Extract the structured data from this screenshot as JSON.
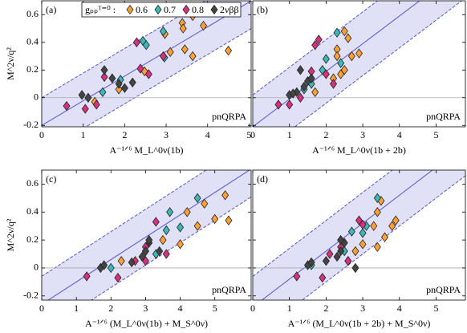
{
  "chart_data": [
    {
      "type": "scatter",
      "title": "(a)",
      "annotation": "pnQRPA",
      "xlabel": "A⁻¹ᐟ⁶ M_L^0ν(1b)",
      "ylabel": "M^2ν/q²",
      "xlim": [
        0,
        5.05
      ],
      "ylim": [
        -0.21,
        0.7
      ],
      "xticks": [
        0,
        1,
        2,
        3,
        4,
        5
      ],
      "yticks": [
        -0.2,
        0,
        0.2,
        0.4,
        0.6
      ],
      "ytick_labels": true,
      "zero_line": true,
      "fit": {
        "intercept": -0.2,
        "slope": 0.178,
        "band": 0.2,
        "color": "#5555d5"
      },
      "legend": "upper left",
      "legend_title": "gₚₚᵀ⁼⁰ :",
      "series": [
        {
          "name": "0.6",
          "color": "#ffa033",
          "x": [
            1.28,
            1.86,
            2.48,
            3.45,
            3.64,
            2.97,
            3.39,
            3.64,
            3.41,
            3.1,
            4.5,
            3.9
          ],
          "values": [
            -0.03,
            0.06,
            0.19,
            0.35,
            0.3,
            0.46,
            0.54,
            0.59,
            0.5,
            0.33,
            0.34,
            0.52
          ]
        },
        {
          "name": "0.7",
          "color": "#3cb8b8",
          "x": [
            1.47,
            1.9,
            2.44,
            2.93,
            2.96,
            2.52
          ],
          "values": [
            0.04,
            0.13,
            0.41,
            0.48,
            0.29,
            0.38
          ]
        },
        {
          "name": "0.8",
          "color": "#d8307c",
          "x": [
            0.6,
            1.05,
            1.32,
            1.51,
            2.29,
            2.38,
            2.58,
            2.93
          ],
          "values": [
            -0.06,
            -0.08,
            -0.05,
            0.15,
            0.4,
            0.21,
            0.17,
            0.3
          ]
        },
        {
          "name": "2νββ",
          "color": "#444444",
          "x": [
            0.97,
            1.12,
            1.7,
            1.86,
            2.0,
            2.19,
            1.51
          ],
          "values": [
            0.02,
            0.0,
            0.14,
            0.1,
            0.07,
            0.11,
            0.2
          ]
        }
      ]
    },
    {
      "type": "scatter",
      "title": "(b)",
      "annotation": "pnQRPA",
      "xlabel": "A⁻¹ᐟ⁶ M_L^0ν(1b + 2b)",
      "xlim": [
        0,
        5.8
      ],
      "ylim": [
        -0.21,
        0.7
      ],
      "xticks": [
        0,
        1,
        2,
        3,
        4,
        5
      ],
      "yticks": [
        -0.2,
        0,
        0.2,
        0.4,
        0.6
      ],
      "ytick_labels": false,
      "zero_line": true,
      "fit": {
        "intercept": -0.21,
        "slope": 0.2,
        "band": 0.23,
        "color": "#5555d5"
      },
      "series": [
        {
          "color": "#ffa033",
          "x": [
            1.7,
            2.2,
            2.4,
            2.5,
            2.7,
            2.6,
            2.5,
            2.3,
            2.9,
            2.3
          ],
          "values": [
            0.04,
            0.14,
            0.17,
            0.2,
            0.3,
            0.43,
            0.48,
            0.35,
            0.32,
            0.3
          ]
        },
        {
          "color": "#3cb8b8",
          "x": [
            1.6,
            1.9,
            2.0,
            2.4,
            2.3,
            1.4
          ],
          "values": [
            0.1,
            0.2,
            0.28,
            0.25,
            0.47,
            0.06
          ]
        },
        {
          "color": "#d8307c",
          "x": [
            0.7,
            1.0,
            1.3,
            1.6,
            1.8,
            1.7,
            2.0,
            2.2
          ],
          "values": [
            -0.05,
            -0.05,
            0.0,
            0.19,
            0.42,
            0.38,
            0.17,
            0.1
          ]
        },
        {
          "color": "#444444",
          "x": [
            1.0,
            1.2,
            1.4,
            1.5,
            1.6,
            1.3,
            1.1
          ],
          "values": [
            0.02,
            0.04,
            0.08,
            0.12,
            0.14,
            0.2,
            0.03
          ]
        }
      ]
    },
    {
      "type": "scatter",
      "title": "(c)",
      "annotation": "pnQRPA",
      "xlabel": "A⁻¹ᐟ⁶ (M_L^0ν(1b) + M_S^0ν)",
      "ylabel": "M^2ν/q²",
      "xlim": [
        0,
        6.05
      ],
      "ylim": [
        -0.23,
        0.7
      ],
      "xticks": [
        0,
        1,
        2,
        3,
        4,
        5
      ],
      "yticks": [
        -0.2,
        0,
        0.2,
        0.4,
        0.6
      ],
      "ytick_labels": true,
      "zero_line": true,
      "fit": {
        "intercept": -0.26,
        "slope": 0.16,
        "band": 0.2,
        "color": "#5555d5"
      },
      "series": [
        {
          "color": "#ffa033",
          "x": [
            2.3,
            3.0,
            3.5,
            4.0,
            4.5,
            5.0,
            5.4,
            4.7,
            5.3,
            4.2
          ],
          "values": [
            0.05,
            0.12,
            0.2,
            0.17,
            0.3,
            0.35,
            0.34,
            0.46,
            0.52,
            0.4
          ]
        },
        {
          "color": "#3cb8b8",
          "x": [
            2.0,
            3.3,
            3.6,
            4.0,
            4.5,
            3.7
          ],
          "values": [
            0.0,
            0.1,
            0.27,
            0.29,
            0.5,
            0.4
          ]
        },
        {
          "color": "#d8307c",
          "x": [
            1.3,
            2.2,
            2.7,
            3.0,
            3.3,
            3.6,
            3.0
          ],
          "values": [
            -0.06,
            -0.07,
            0.05,
            0.15,
            0.33,
            0.1,
            0.05
          ]
        },
        {
          "color": "#444444",
          "x": [
            1.7,
            1.8,
            2.6,
            2.9,
            3.0,
            3.1,
            3.1,
            3.4
          ],
          "values": [
            0.0,
            0.02,
            0.04,
            0.08,
            0.12,
            0.18,
            0.2,
            0.12
          ]
        }
      ]
    },
    {
      "type": "scatter",
      "title": "(d)",
      "annotation": "pnQRPA",
      "xlabel": "A⁻¹ᐟ⁶ (M_L^0ν(1b + 2b) + M_S^0ν)",
      "xlim": [
        0,
        5.8
      ],
      "ylim": [
        -0.23,
        0.7
      ],
      "xticks": [
        0,
        1,
        2,
        3,
        4,
        5
      ],
      "yticks": [
        -0.2,
        0,
        0.2,
        0.4,
        0.6
      ],
      "ytick_labels": false,
      "zero_line": true,
      "fit": {
        "intercept": -0.28,
        "slope": 0.2,
        "band": 0.22,
        "color": "#5555d5"
      },
      "series": [
        {
          "color": "#ffa033",
          "x": [
            2.6,
            2.8,
            3.0,
            3.4,
            3.6,
            3.8,
            3.9,
            3.4,
            3.5,
            3.3
          ],
          "values": [
            0.05,
            0.12,
            0.17,
            0.15,
            0.22,
            0.3,
            0.34,
            0.4,
            0.48,
            0.3
          ]
        },
        {
          "color": "#3cb8b8",
          "x": [
            1.6,
            2.5,
            2.7,
            3.0,
            3.4,
            3.1
          ],
          "values": [
            0.02,
            0.12,
            0.26,
            0.25,
            0.5,
            0.3
          ]
        },
        {
          "color": "#d8307c",
          "x": [
            1.2,
            1.9,
            2.1,
            2.4,
            2.9,
            3.0,
            2.6
          ],
          "values": [
            -0.06,
            -0.07,
            0.1,
            0.15,
            0.34,
            0.31,
            0.05
          ]
        },
        {
          "color": "#444444",
          "x": [
            1.5,
            1.6,
            2.0,
            2.3,
            2.4,
            2.5,
            2.4,
            2.8
          ],
          "values": [
            0.02,
            0.04,
            0.05,
            0.08,
            0.12,
            0.18,
            0.2,
            0.0
          ]
        }
      ]
    }
  ]
}
